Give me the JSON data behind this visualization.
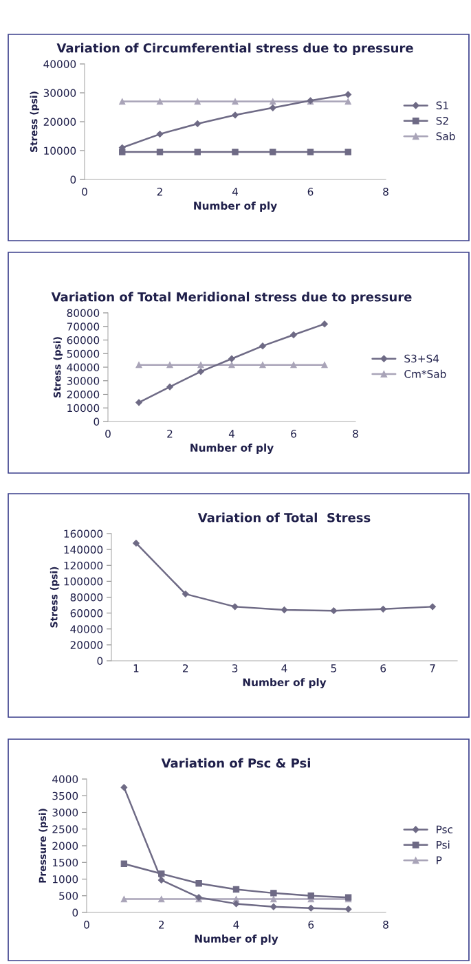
{
  "chart_data": [
    {
      "type": "line",
      "title": "Variation of Circumferential stress due to pressure",
      "xlabel": "Number of ply",
      "ylabel": "Stress (psi)",
      "x": [
        1,
        2,
        3,
        4,
        5,
        6,
        7
      ],
      "xlim": [
        0,
        8
      ],
      "xticks": [
        0,
        2,
        4,
        6,
        8
      ],
      "ylim": [
        0,
        40000
      ],
      "yticks": [
        0,
        10000,
        20000,
        30000,
        40000
      ],
      "grid": false,
      "legend": "right",
      "series": [
        {
          "name": "S1",
          "color": "#6e6a85",
          "marker": "diamond",
          "values": [
            11000,
            15700,
            19300,
            22300,
            24800,
            27300,
            29400
          ]
        },
        {
          "name": "S2",
          "color": "#6e6a85",
          "marker": "square",
          "values": [
            9500,
            9500,
            9500,
            9500,
            9500,
            9500,
            9500
          ]
        },
        {
          "name": "Sab",
          "color": "#a9a4b8",
          "marker": "triangle",
          "values": [
            27000,
            27000,
            27000,
            27000,
            27000,
            27000,
            27000
          ]
        }
      ]
    },
    {
      "type": "line",
      "title": "Variation of Total Meridional stress due to pressure",
      "xlabel": "Number of ply",
      "ylabel": "Stress (psi)",
      "x": [
        1,
        2,
        3,
        4,
        5,
        6,
        7
      ],
      "xlim": [
        0,
        8
      ],
      "xticks": [
        0,
        2,
        4,
        6,
        8
      ],
      "ylim": [
        0,
        80000
      ],
      "yticks": [
        0,
        10000,
        20000,
        30000,
        40000,
        50000,
        60000,
        70000,
        80000
      ],
      "grid": false,
      "legend": "right",
      "series": [
        {
          "name": "S3+S4",
          "color": "#6e6a85",
          "marker": "diamond",
          "values": [
            14000,
            25500,
            36800,
            46200,
            55600,
            63800,
            71800
          ]
        },
        {
          "name": "Cm*Sab",
          "color": "#a9a4b8",
          "marker": "triangle",
          "values": [
            41700,
            41700,
            41700,
            41700,
            41700,
            41700,
            41700
          ]
        }
      ]
    },
    {
      "type": "line",
      "title": "Variation of Total  Stress",
      "xlabel": "Number of ply",
      "ylabel": "Stress (psi)",
      "categories": [
        "1",
        "2",
        "3",
        "4",
        "5",
        "6",
        "7"
      ],
      "ylim": [
        0,
        160000
      ],
      "yticks": [
        0,
        20000,
        40000,
        60000,
        80000,
        100000,
        120000,
        140000,
        160000
      ],
      "grid": false,
      "legend": false,
      "series": [
        {
          "color": "#6e6a85",
          "marker": "diamond",
          "values": [
            148000,
            84000,
            68000,
            64000,
            63000,
            65000,
            68000
          ]
        }
      ]
    },
    {
      "type": "line",
      "title": "Variation of Psc & Psi",
      "xlabel": "Number of ply",
      "ylabel": "Pressure (psi)",
      "x": [
        1,
        2,
        3,
        4,
        5,
        6,
        7
      ],
      "xlim": [
        0,
        8
      ],
      "xticks": [
        0,
        2,
        4,
        6,
        8
      ],
      "ylim": [
        0,
        4000
      ],
      "yticks": [
        0,
        500,
        1000,
        1500,
        2000,
        2500,
        3000,
        3500,
        4000
      ],
      "grid": false,
      "legend": "right",
      "series": [
        {
          "name": "Psc",
          "color": "#6e6a85",
          "marker": "diamond",
          "values": [
            3750,
            970,
            450,
            260,
            170,
            130,
            100
          ]
        },
        {
          "name": "Psi",
          "color": "#6e6a85",
          "marker": "square",
          "values": [
            1460,
            1160,
            870,
            690,
            580,
            500,
            450
          ]
        },
        {
          "name": "P",
          "color": "#a9a4b8",
          "marker": "triangle",
          "values": [
            400,
            400,
            400,
            400,
            400,
            400,
            400
          ]
        }
      ]
    }
  ]
}
